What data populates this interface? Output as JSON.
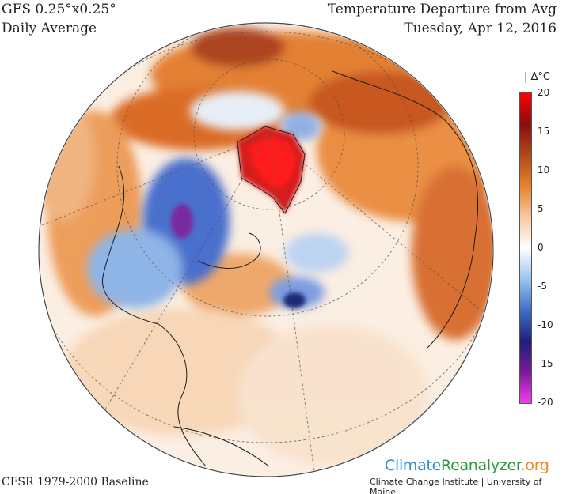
{
  "header": {
    "model": "GFS 0.25°x0.25°",
    "period": "Daily Average",
    "title": "Temperature Departure from Avg",
    "date": "Tuesday, Apr 12, 2016"
  },
  "footer": {
    "baseline": "CFSR 1979-2000 Baseline",
    "brand_part1": "Climate",
    "brand_part2": "Reanalyzer",
    "brand_part3": ".org",
    "institute": "Climate Change Institute | University of Maine"
  },
  "legend": {
    "unit": "| Δ°C",
    "ticks": [
      "20",
      "15",
      "10",
      "5",
      "0",
      "-5",
      "-10",
      "-15",
      "-20"
    ],
    "colors": [
      "#f53cf0",
      "#7a1a9a",
      "#1f1f7a",
      "#3f6fc6",
      "#9cc3ee",
      "#ffffff",
      "#f7c9a3",
      "#e8822a",
      "#b04a1a",
      "#8a0d0d",
      "#ff0000"
    ]
  },
  "map": {
    "ocean_color": "#f9f3ee",
    "warm_color": "#f2a868",
    "hot_color": "#ff1010",
    "cold_color": "#3a5db8"
  }
}
